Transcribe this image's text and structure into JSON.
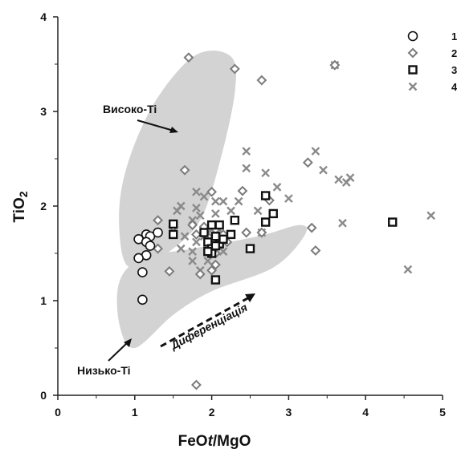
{
  "chart_data": {
    "type": "scatter",
    "xlabel_main": "FeO",
    "xlabel_italic": "t",
    "xlabel_tail": "/MgO",
    "ylabel_main": "TiO",
    "ylabel_sub": "2",
    "xlim": [
      0,
      5
    ],
    "ylim": [
      0,
      4
    ],
    "x_ticks": [
      0,
      1,
      2,
      3,
      4,
      5
    ],
    "y_ticks": [
      0,
      1,
      2,
      3,
      4
    ],
    "grid": false,
    "legend_position": "top-right",
    "annotations": {
      "high_ti": "Високо-Ti",
      "low_ti": "Низько-Ti",
      "differentiation": "Диференціація"
    },
    "fields": {
      "high_ti": [
        [
          0.85,
          1.45
        ],
        [
          0.8,
          2.0
        ],
        [
          0.95,
          2.55
        ],
        [
          1.3,
          3.15
        ],
        [
          1.8,
          3.6
        ],
        [
          2.25,
          3.58
        ],
        [
          2.3,
          3.2
        ],
        [
          2.1,
          2.45
        ],
        [
          1.85,
          1.85
        ],
        [
          1.45,
          1.52
        ],
        [
          1.05,
          1.35
        ]
      ],
      "low_ti": [
        [
          1.0,
          0.5
        ],
        [
          0.8,
          0.75
        ],
        [
          0.8,
          1.2
        ],
        [
          1.1,
          1.45
        ],
        [
          1.75,
          1.55
        ],
        [
          2.6,
          1.68
        ],
        [
          3.15,
          1.8
        ],
        [
          3.2,
          1.68
        ],
        [
          2.8,
          1.35
        ],
        [
          2.0,
          1.1
        ],
        [
          1.5,
          0.85
        ]
      ]
    },
    "series": [
      {
        "name": "1",
        "marker": "circle",
        "color": "#111111",
        "points": [
          [
            1.15,
            1.7
          ],
          [
            1.2,
            1.68
          ],
          [
            1.3,
            1.72
          ],
          [
            1.05,
            1.65
          ],
          [
            1.15,
            1.62
          ],
          [
            1.2,
            1.58
          ],
          [
            1.15,
            1.48
          ],
          [
            1.05,
            1.45
          ],
          [
            1.1,
            1.3
          ],
          [
            1.1,
            1.01
          ]
        ]
      },
      {
        "name": "2",
        "marker": "diamond",
        "color": "#7a7a7a",
        "points": [
          [
            1.7,
            3.57
          ],
          [
            2.3,
            3.45
          ],
          [
            2.65,
            3.33
          ],
          [
            3.6,
            3.49
          ],
          [
            1.65,
            2.38
          ],
          [
            2.0,
            2.15
          ],
          [
            2.4,
            2.16
          ],
          [
            2.75,
            2.06
          ],
          [
            1.3,
            1.85
          ],
          [
            1.5,
            1.78
          ],
          [
            1.75,
            1.8
          ],
          [
            1.8,
            1.7
          ],
          [
            1.3,
            1.55
          ],
          [
            1.45,
            1.31
          ],
          [
            1.85,
            1.28
          ],
          [
            2.0,
            1.32
          ],
          [
            2.05,
            1.38
          ],
          [
            1.9,
            1.78
          ],
          [
            2.15,
            1.7
          ],
          [
            2.45,
            1.72
          ],
          [
            2.65,
            1.72
          ],
          [
            3.25,
            2.46
          ],
          [
            3.3,
            1.77
          ],
          [
            3.35,
            1.53
          ],
          [
            1.8,
            0.11
          ],
          [
            2.05,
            1.5
          ],
          [
            2.2,
            1.62
          ]
        ]
      },
      {
        "name": "3",
        "marker": "square",
        "color": "#111111",
        "points": [
          [
            1.5,
            1.81
          ],
          [
            1.5,
            1.7
          ],
          [
            1.9,
            1.72
          ],
          [
            1.95,
            1.62
          ],
          [
            2.0,
            1.55
          ],
          [
            2.0,
            1.5
          ],
          [
            2.0,
            1.8
          ],
          [
            2.05,
            1.68
          ],
          [
            2.1,
            1.8
          ],
          [
            2.1,
            1.6
          ],
          [
            2.15,
            1.65
          ],
          [
            2.25,
            1.7
          ],
          [
            2.3,
            1.85
          ],
          [
            2.05,
            1.58
          ],
          [
            1.95,
            1.52
          ],
          [
            2.5,
            1.55
          ],
          [
            2.7,
            2.11
          ],
          [
            2.7,
            1.83
          ],
          [
            2.8,
            1.92
          ],
          [
            2.05,
            1.22
          ],
          [
            4.35,
            1.83
          ]
        ]
      },
      {
        "name": "4",
        "marker": "x",
        "color": "#8a8a8a",
        "points": [
          [
            3.6,
            3.49
          ],
          [
            2.45,
            2.58
          ],
          [
            3.35,
            2.58
          ],
          [
            3.45,
            2.38
          ],
          [
            3.65,
            2.28
          ],
          [
            3.75,
            2.25
          ],
          [
            3.8,
            2.3
          ],
          [
            2.45,
            2.4
          ],
          [
            2.7,
            2.35
          ],
          [
            2.85,
            2.2
          ],
          [
            2.35,
            2.05
          ],
          [
            2.6,
            1.95
          ],
          [
            1.8,
            2.15
          ],
          [
            1.9,
            2.1
          ],
          [
            2.05,
            2.05
          ],
          [
            2.15,
            2.05
          ],
          [
            1.6,
            2.0
          ],
          [
            1.8,
            1.98
          ],
          [
            1.55,
            1.95
          ],
          [
            1.75,
            1.85
          ],
          [
            1.85,
            1.9
          ],
          [
            2.0,
            1.75
          ],
          [
            2.1,
            1.75
          ],
          [
            1.65,
            1.68
          ],
          [
            1.8,
            1.62
          ],
          [
            1.9,
            1.68
          ],
          [
            1.95,
            1.72
          ],
          [
            1.75,
            1.52
          ],
          [
            1.6,
            1.55
          ],
          [
            2.15,
            1.52
          ],
          [
            2.65,
            1.72
          ],
          [
            1.75,
            1.42
          ],
          [
            1.85,
            1.32
          ],
          [
            1.95,
            1.42
          ],
          [
            2.05,
            1.92
          ],
          [
            2.25,
            1.95
          ],
          [
            3.0,
            2.08
          ],
          [
            3.7,
            1.82
          ],
          [
            4.55,
            1.33
          ],
          [
            4.85,
            1.9
          ]
        ]
      }
    ]
  }
}
